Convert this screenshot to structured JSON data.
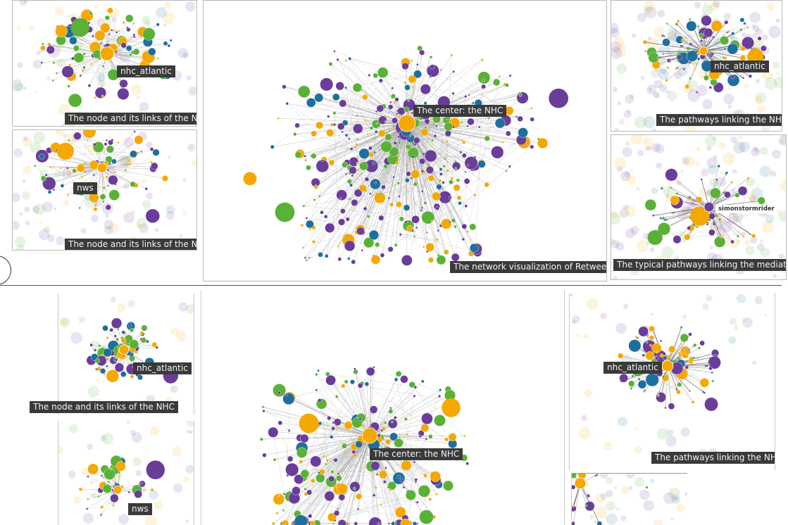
{
  "top_section": {
    "nhc_panel": {
      "caption": "The node and its links of the NHC",
      "node_label": "nhc_atlantic"
    },
    "nws_panel": {
      "caption": "The node and its links of the NWS",
      "node_label": "nws"
    },
    "main_panel": {
      "caption": "The network visualization of Retweet",
      "center_label": "The center: the NHC"
    },
    "pathways_panel": {
      "caption": "The pathways linking the NHC",
      "node_label": "nhc_atlantic"
    },
    "mediators_panel": {
      "caption": "The typical pathways linking the mediators",
      "node_label": "simonstormrider"
    }
  },
  "bottom_section": {
    "nhc_panel": {
      "caption": "The node and its links of the NHC",
      "node_label": "nhc_atlantic"
    },
    "nws_panel": {
      "node_label": "nws"
    },
    "main_panel": {
      "center_label": "The center: the NHC"
    },
    "pathways_panel": {
      "caption": "The pathways linking the NHC",
      "node_label": "nhc_atlantic"
    }
  },
  "colors": {
    "purple": "#6a3d9a",
    "green": "#5ab138",
    "orange": "#f5a800",
    "blue": "#1f6f9c",
    "edge": "#9a9a9a",
    "label_bg": "#3a3a3a"
  }
}
